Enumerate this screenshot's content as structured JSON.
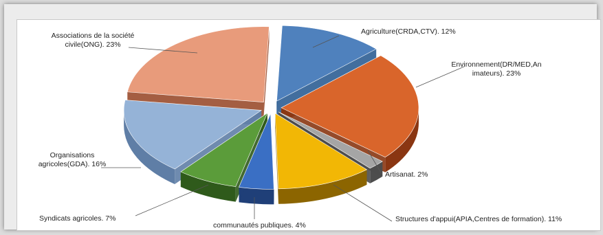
{
  "chart_data": {
    "type": "pie",
    "style": "3d-exploded",
    "title": "",
    "slices": [
      {
        "key": "agri",
        "label_lines": [
          "Agriculture(CRDA,CTV). 12%"
        ],
        "value": 12,
        "color": "#4f81bd",
        "side": "#2e5e93"
      },
      {
        "key": "env",
        "label_lines": [
          "Environnement(DR/MED,An",
          "imateurs). 23%"
        ],
        "value": 23,
        "color": "#d9652b",
        "side": "#8a3612"
      },
      {
        "key": "art",
        "label_lines": [
          "Artisanat. 2%"
        ],
        "value": 2,
        "color": "#a5a5a5",
        "side": "#4d4d4d"
      },
      {
        "key": "struct",
        "label_lines": [
          "Structures d'appui(APIA,Centres de formation). 11%"
        ],
        "value": 11,
        "color": "#f2b705",
        "side": "#8c6500"
      },
      {
        "key": "comm",
        "label_lines": [
          "communautés publiques. 4%"
        ],
        "value": 4,
        "color": "#3a6fc4",
        "side": "#1f3f78"
      },
      {
        "key": "synd",
        "label_lines": [
          "Syndicats agricoles. 7%"
        ],
        "value": 7,
        "color": "#5b9c3a",
        "side": "#2f5a1b"
      },
      {
        "key": "org",
        "label_lines": [
          "Organisations",
          "agricoles(GDA). 16%"
        ],
        "value": 16,
        "color": "#95b3d7",
        "side": "#5f7ea6"
      },
      {
        "key": "assoc",
        "label_lines": [
          "Associations de la société",
          "civile(ONG). 23%"
        ],
        "value": 23,
        "color": "#e89b7b",
        "side": "#9a4d2e"
      }
    ],
    "legend": "none"
  }
}
